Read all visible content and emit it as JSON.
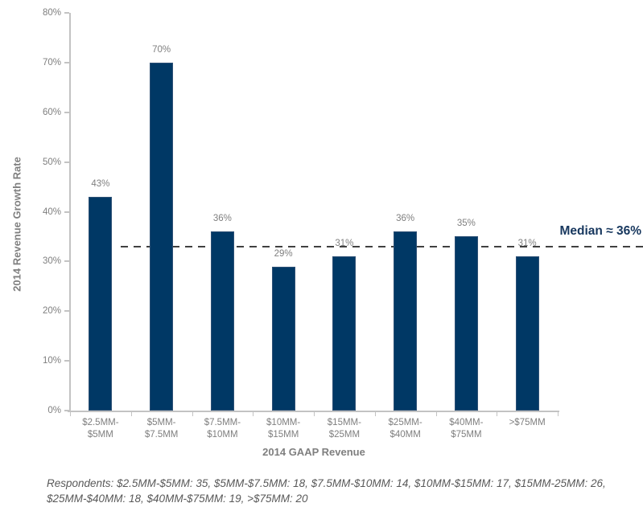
{
  "chart_data": {
    "type": "bar",
    "title": "",
    "xlabel": "2014 GAAP Revenue",
    "ylabel": "2014 Revenue Growth Rate",
    "categories": [
      "$2.5MM-\n$5MM",
      "$5MM-\n$7.5MM",
      "$7.5MM-\n$10MM",
      "$10MM-\n$15MM",
      "$15MM-\n$25MM",
      "$25MM-\n$40MM",
      "$40MM-\n$75MM",
      ">$75MM"
    ],
    "values": [
      43,
      70,
      36,
      29,
      31,
      36,
      35,
      31
    ],
    "value_labels": [
      "43%",
      "70%",
      "36%",
      "29%",
      "31%",
      "36%",
      "35%",
      "31%"
    ],
    "ylim": [
      0,
      80
    ],
    "ytick_step": 10,
    "ytick_labels": [
      "0%",
      "10%",
      "20%",
      "30%",
      "40%",
      "50%",
      "60%",
      "70%",
      "80%"
    ],
    "grid": false,
    "legend_position": "none",
    "median_line": {
      "label": "Median ≈ 36%",
      "line_position_pct": 33,
      "style": "dashed"
    },
    "colors": {
      "bar": "#003865",
      "bar_border": "#2e5176",
      "median_text": "#17375e",
      "dash_line": "#404040",
      "axis": "#c3c3c3",
      "tick_text": "#7f7f7f",
      "axis_title_text": "#7f7f7f",
      "footnote_text": "#595959",
      "background": "#ffffff"
    }
  },
  "footnote": {
    "line1": "Respondents: $2.5MM-$5MM: 35, $5MM-$7.5MM: 18, $7.5MM-$10MM: 14, $10MM-$15MM: 17, $15MM-25MM: 26,",
    "line2": "$25MM-$40MM: 18, $40MM-$75MM: 19, >$75MM: 20"
  }
}
